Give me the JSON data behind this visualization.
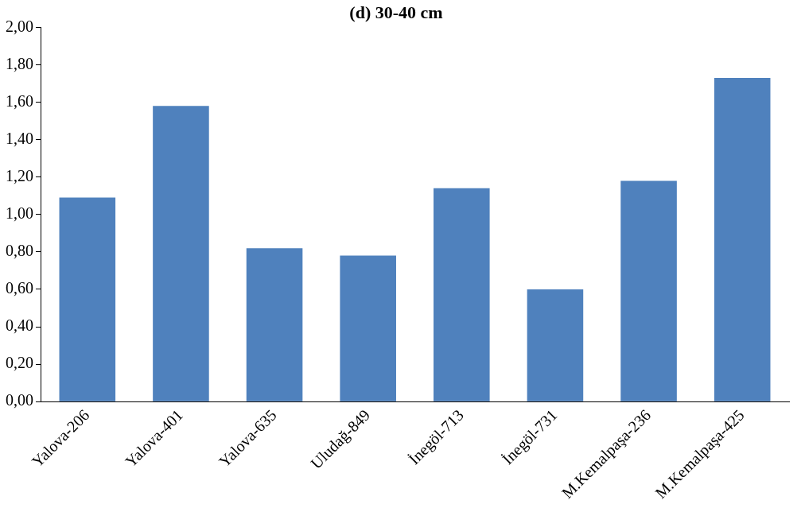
{
  "chart_data": {
    "type": "bar",
    "title": "(d) 30-40 cm",
    "categories": [
      "Yalova-206",
      "Yalova-401",
      "Yalova-635",
      "Uludağ-849",
      "İnegöl-713",
      "İnegöl-731",
      "M.Kemalpaşa-236",
      "M.Kemalpaşa-425"
    ],
    "values": [
      1.09,
      1.58,
      0.82,
      0.78,
      1.14,
      0.6,
      1.18,
      1.73
    ],
    "color": "#4f81bd",
    "ylim": [
      0,
      2
    ],
    "yticks": [
      {
        "value": 0,
        "label": "0,00"
      },
      {
        "value": 0.2,
        "label": "0,20"
      },
      {
        "value": 0.4,
        "label": "0,40"
      },
      {
        "value": 0.6,
        "label": "0,60"
      },
      {
        "value": 0.8,
        "label": "0,80"
      },
      {
        "value": 1,
        "label": "1,00"
      },
      {
        "value": 1.2,
        "label": "1,20"
      },
      {
        "value": 1.4,
        "label": "1,40"
      },
      {
        "value": 1.6,
        "label": "1,60"
      },
      {
        "value": 1.8,
        "label": "1,80"
      },
      {
        "value": 2,
        "label": "2,00"
      }
    ],
    "grid": false,
    "legend": false
  }
}
